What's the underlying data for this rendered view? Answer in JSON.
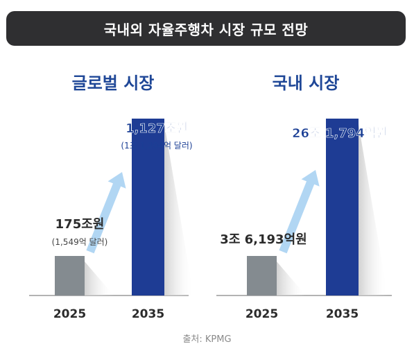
{
  "header": {
    "title": "국내외 자율주행차 시장 규모 전망"
  },
  "source": "출처: KPMG",
  "colors": {
    "bar_2025": "#848b90",
    "bar_2035": "#1e3c94",
    "title": "#1f4797",
    "label_blue": "#1b3f95",
    "arrow": "#a9d2f2",
    "axis": "#9a9a9a"
  },
  "chart_data": [
    {
      "type": "bar",
      "title": "글로벌 시장",
      "categories": [
        "2025",
        "2035"
      ],
      "values": [
        175,
        1127
      ],
      "unit": "조원",
      "ylim": [
        0,
        1127
      ],
      "labels": [
        {
          "main": "175조원",
          "sub": "(1,549억 달러)"
        },
        {
          "main": "1,127조원",
          "sub": "(1조 1,204억 달러)"
        }
      ]
    },
    {
      "type": "bar",
      "title": "국내 시장",
      "categories": [
        "2025",
        "2035"
      ],
      "values": [
        3.6193,
        26.1794
      ],
      "unit": "조원",
      "ylim": [
        0,
        26.1794
      ],
      "labels": [
        {
          "main": "3조 6,193억원",
          "sub": ""
        },
        {
          "main": "26조 1,794억원",
          "sub": ""
        }
      ]
    }
  ]
}
